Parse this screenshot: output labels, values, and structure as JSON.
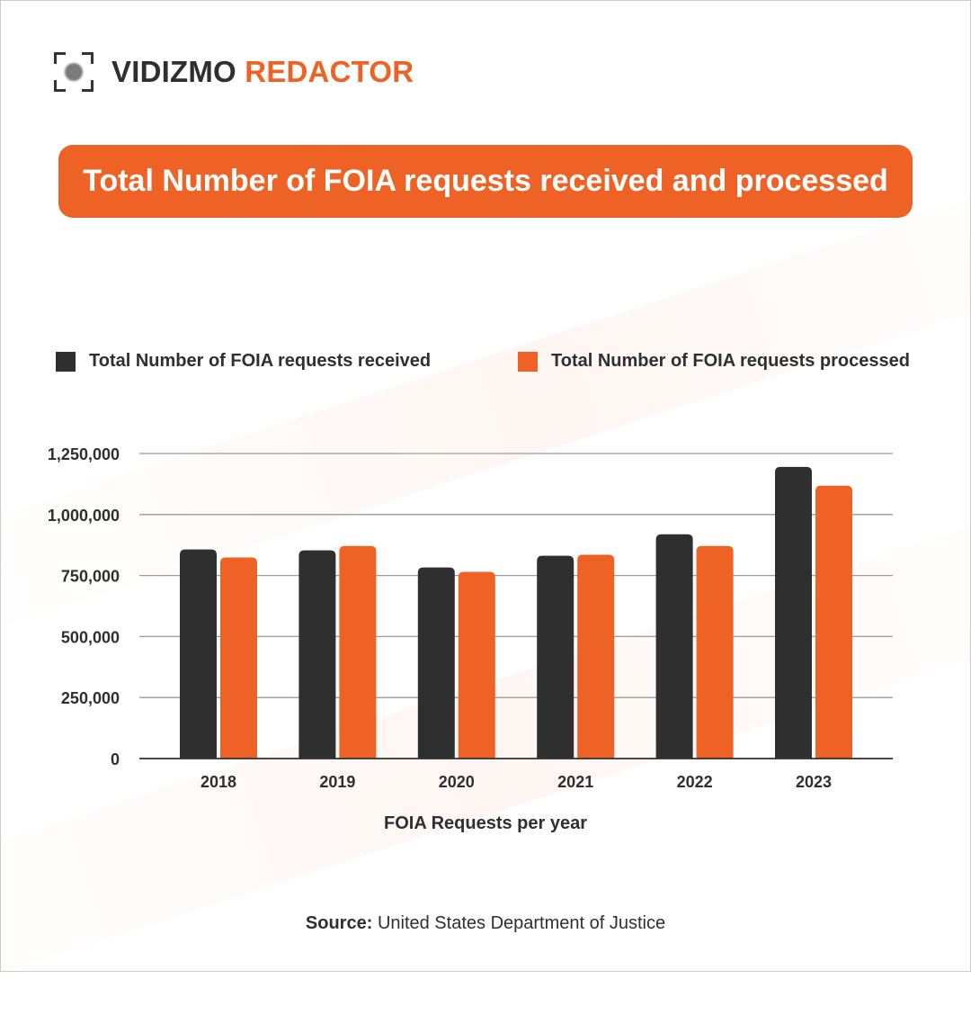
{
  "brand": {
    "name_dark": "VIDIZMO",
    "name_accent": "REDACTOR"
  },
  "colors": {
    "accent": "#ef6226",
    "dark": "#2f2f2f",
    "grid": "#8a8a8a"
  },
  "source": {
    "label": "Source:",
    "text": "United States Department of Justice"
  },
  "chart_data": {
    "type": "bar",
    "title": "Total Number of FOIA requests received and processed",
    "xlabel": "FOIA Requests per year",
    "ylabel": "",
    "categories": [
      "2018",
      "2019",
      "2020",
      "2021",
      "2022",
      "2023"
    ],
    "series": [
      {
        "name": "Total Number of FOIA requests received",
        "color": "#2f2f2f",
        "values": [
          857000,
          853000,
          783000,
          831000,
          919000,
          1195000
        ]
      },
      {
        "name": "Total Number of FOIA requests processed",
        "color": "#ef6226",
        "values": [
          824000,
          871000,
          765000,
          835000,
          871000,
          1118000
        ]
      }
    ],
    "ylim": [
      0,
      1250000
    ],
    "yticks": [
      0,
      250000,
      500000,
      750000,
      1000000,
      1250000
    ],
    "ytick_labels": [
      "0",
      "250,000",
      "500,000",
      "750,000",
      "1,000,000",
      "1,250,000"
    ],
    "grid": true,
    "legend_position": "top"
  }
}
